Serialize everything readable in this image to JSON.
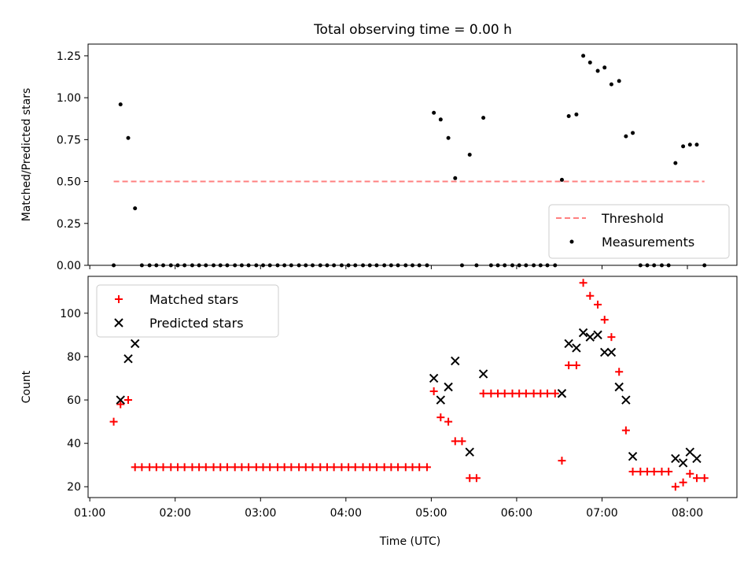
{
  "figure_title": "Total observing time = 0.00 h",
  "chart_data": [
    {
      "type": "scatter",
      "ylabel": "Matched/Predicted stars",
      "xlim_hours": [
        0.98,
        8.58
      ],
      "ylim": [
        0,
        1.32
      ],
      "yticks": [
        0.0,
        0.25,
        0.5,
        0.75,
        1.0,
        1.25
      ],
      "ytick_labels": [
        "0.00",
        "0.25",
        "0.50",
        "0.75",
        "1.00",
        "1.25"
      ],
      "legend_position": "lower-right",
      "grid": false,
      "threshold": {
        "name": "Threshold",
        "value": 0.5,
        "x_range": [
          1.28,
          8.2
        ],
        "color": "#ff8080"
      },
      "series": [
        {
          "name": "Measurements",
          "marker": "dot",
          "color": "#000000",
          "x": [
            1.28,
            1.36,
            1.45,
            1.53,
            1.61,
            1.7,
            1.78,
            1.86,
            1.95,
            2.03,
            2.11,
            2.2,
            2.28,
            2.36,
            2.45,
            2.53,
            2.61,
            2.7,
            2.78,
            2.86,
            2.95,
            3.03,
            3.11,
            3.2,
            3.28,
            3.36,
            3.45,
            3.53,
            3.61,
            3.7,
            3.78,
            3.86,
            3.95,
            4.03,
            4.11,
            4.2,
            4.28,
            4.36,
            4.45,
            4.53,
            4.61,
            4.7,
            4.78,
            4.86,
            4.95,
            5.03,
            5.11,
            5.2,
            5.28,
            5.36,
            5.45,
            5.53,
            5.61,
            5.7,
            5.78,
            5.86,
            5.95,
            6.03,
            6.11,
            6.2,
            6.28,
            6.36,
            6.45,
            6.53,
            6.61,
            6.7,
            6.78,
            6.86,
            6.95,
            7.03,
            7.11,
            7.2,
            7.28,
            7.36,
            7.45,
            7.53,
            7.61,
            7.7,
            7.78,
            7.86,
            7.95,
            8.03,
            8.11,
            8.2
          ],
          "y": [
            0,
            0.96,
            0.76,
            0.34,
            0,
            0,
            0,
            0,
            0,
            0,
            0,
            0,
            0,
            0,
            0,
            0,
            0,
            0,
            0,
            0,
            0,
            0,
            0,
            0,
            0,
            0,
            0,
            0,
            0,
            0,
            0,
            0,
            0,
            0,
            0,
            0,
            0,
            0,
            0,
            0,
            0,
            0,
            0,
            0,
            0,
            0.91,
            0.87,
            0.76,
            0.52,
            0,
            0.66,
            0,
            0.88,
            0,
            0,
            0,
            0,
            0,
            0,
            0,
            0,
            0,
            0,
            0.51,
            0.89,
            0.9,
            1.25,
            1.21,
            1.16,
            1.18,
            1.08,
            1.1,
            0.77,
            0.79,
            0,
            0,
            0,
            0,
            0,
            0.61,
            0.71,
            0.72,
            0.72,
            0
          ]
        }
      ]
    },
    {
      "type": "scatter",
      "xlabel": "Time (UTC)",
      "ylabel": "Count",
      "xlim_hours": [
        0.98,
        8.58
      ],
      "ylim": [
        15,
        117
      ],
      "yticks": [
        20,
        40,
        60,
        80,
        100
      ],
      "ytick_labels": [
        "20",
        "40",
        "60",
        "80",
        "100"
      ],
      "xticks_hours": [
        1,
        2,
        3,
        4,
        5,
        6,
        7,
        8
      ],
      "xtick_labels": [
        "01:00",
        "02:00",
        "03:00",
        "04:00",
        "05:00",
        "06:00",
        "07:00",
        "08:00"
      ],
      "legend_position": "top-left",
      "grid": false,
      "series": [
        {
          "name": "Matched stars",
          "marker": "plus",
          "color": "#ff0000",
          "x": [
            1.28,
            1.36,
            1.45,
            1.53,
            1.61,
            1.7,
            1.78,
            1.86,
            1.95,
            2.03,
            2.11,
            2.2,
            2.28,
            2.36,
            2.45,
            2.53,
            2.61,
            2.7,
            2.78,
            2.86,
            2.95,
            3.03,
            3.11,
            3.2,
            3.28,
            3.36,
            3.45,
            3.53,
            3.61,
            3.7,
            3.78,
            3.86,
            3.95,
            4.03,
            4.11,
            4.2,
            4.28,
            4.36,
            4.45,
            4.53,
            4.61,
            4.7,
            4.78,
            4.86,
            4.95,
            5.03,
            5.11,
            5.2,
            5.28,
            5.36,
            5.45,
            5.53,
            5.61,
            5.7,
            5.78,
            5.86,
            5.95,
            6.03,
            6.11,
            6.2,
            6.28,
            6.36,
            6.45,
            6.53,
            6.61,
            6.7,
            6.78,
            6.86,
            6.95,
            7.03,
            7.11,
            7.2,
            7.28,
            7.36,
            7.45,
            7.53,
            7.61,
            7.7,
            7.78,
            7.86,
            7.95,
            8.03,
            8.11,
            8.2
          ],
          "y": [
            50,
            58,
            60,
            29,
            29,
            29,
            29,
            29,
            29,
            29,
            29,
            29,
            29,
            29,
            29,
            29,
            29,
            29,
            29,
            29,
            29,
            29,
            29,
            29,
            29,
            29,
            29,
            29,
            29,
            29,
            29,
            29,
            29,
            29,
            29,
            29,
            29,
            29,
            29,
            29,
            29,
            29,
            29,
            29,
            29,
            64,
            52,
            50,
            41,
            41,
            24,
            24,
            63,
            63,
            63,
            63,
            63,
            63,
            63,
            63,
            63,
            63,
            63,
            32,
            76,
            76,
            114,
            108,
            104,
            97,
            89,
            73,
            46,
            27,
            27,
            27,
            27,
            27,
            27,
            20,
            22,
            26,
            24,
            24
          ]
        },
        {
          "name": "Predicted stars",
          "marker": "x",
          "color": "#000000",
          "x": [
            1.36,
            1.45,
            1.53,
            5.03,
            5.11,
            5.2,
            5.28,
            5.45,
            5.61,
            6.53,
            6.61,
            6.7,
            6.78,
            6.86,
            6.95,
            7.03,
            7.11,
            7.2,
            7.28,
            7.36,
            7.86,
            7.95,
            8.03,
            8.11
          ],
          "y": [
            60,
            79,
            86,
            70,
            60,
            66,
            78,
            36,
            72,
            63,
            86,
            84,
            91,
            89,
            90,
            82,
            82,
            66,
            60,
            34,
            33,
            31,
            36,
            33
          ]
        }
      ]
    }
  ]
}
